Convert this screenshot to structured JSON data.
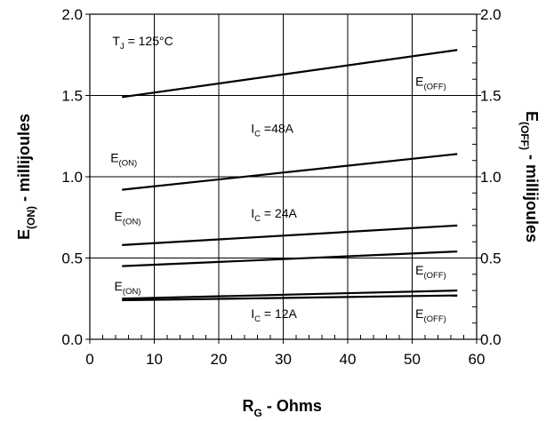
{
  "chart_data": {
    "type": "line",
    "title": "",
    "xlabel": {
      "main": "R",
      "sub": "G",
      "rest": " - Ohms"
    },
    "ylabel_left": {
      "main": "E",
      "sub": "(ON)",
      "rest": " - millijoules"
    },
    "ylabel_right": {
      "main": "E",
      "sub": "(OFF)",
      "rest": " - millijoules"
    },
    "xlim": [
      0,
      60
    ],
    "ylim": [
      0.0,
      2.0
    ],
    "x_ticks": [
      "0",
      "10",
      "20",
      "30",
      "40",
      "50",
      "60"
    ],
    "y_ticks_left": [
      "0.0",
      "0.5",
      "1.0",
      "1.5",
      "2.0"
    ],
    "y_ticks_right": [
      "0.0",
      "0.5",
      "1.0",
      "1.5",
      "2.0"
    ],
    "grid": true,
    "series": [
      {
        "x": [
          5,
          57
        ],
        "y": [
          1.49,
          1.78
        ]
      },
      {
        "x": [
          5,
          57
        ],
        "y": [
          0.92,
          1.14
        ]
      },
      {
        "x": [
          5,
          57
        ],
        "y": [
          0.58,
          0.7
        ]
      },
      {
        "x": [
          5,
          57
        ],
        "y": [
          0.45,
          0.54
        ]
      },
      {
        "x": [
          5,
          57
        ],
        "y": [
          0.25,
          0.3
        ]
      },
      {
        "x": [
          5,
          57
        ],
        "y": [
          0.24,
          0.27
        ]
      }
    ],
    "annotations": [
      {
        "main": "T",
        "sub": "J",
        "rest": " = 125°C",
        "x": 3.5,
        "y": 1.81
      },
      {
        "main": "E",
        "sub": "(OFF)",
        "rest": "",
        "x": 50.5,
        "y": 1.56
      },
      {
        "main": "I",
        "sub": "C",
        "rest": " =48A",
        "x": 25,
        "y": 1.27
      },
      {
        "main": "E",
        "sub": "(ON)",
        "rest": "",
        "x": 3.2,
        "y": 1.09
      },
      {
        "main": "E",
        "sub": "(ON)",
        "rest": "",
        "x": 3.8,
        "y": 0.73
      },
      {
        "main": "I",
        "sub": "C",
        "rest": " = 24A",
        "x": 25,
        "y": 0.75
      },
      {
        "main": "E",
        "sub": "(OFF)",
        "rest": "",
        "x": 50.5,
        "y": 0.4
      },
      {
        "main": "E",
        "sub": "(ON)",
        "rest": "",
        "x": 3.8,
        "y": 0.3
      },
      {
        "main": "I",
        "sub": "C",
        "rest": " = 12A",
        "x": 25,
        "y": 0.13
      },
      {
        "main": "E",
        "sub": "(OFF)",
        "rest": "",
        "x": 50.5,
        "y": 0.13
      }
    ]
  }
}
